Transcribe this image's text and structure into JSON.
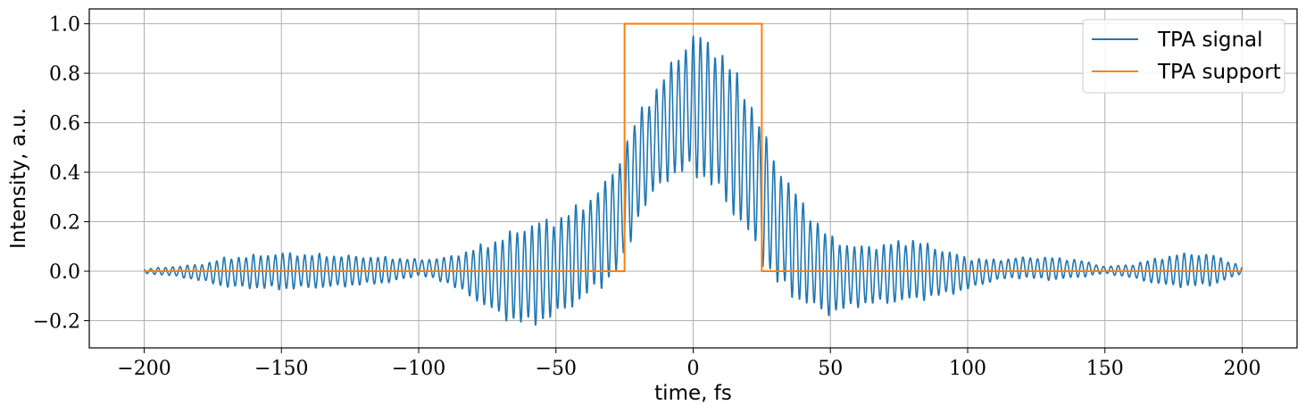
{
  "chart_data": {
    "type": "line",
    "xlabel": "time, fs",
    "ylabel": "Intensity, a.u.",
    "xlim": [
      -220,
      220
    ],
    "ylim": [
      -0.31,
      1.06
    ],
    "grid": true,
    "legend_position": "top-right",
    "xticks": [
      -200,
      -150,
      -100,
      -50,
      0,
      50,
      100,
      150,
      200
    ],
    "xtick_labels": [
      "−200",
      "−150",
      "−100",
      "−50",
      "0",
      "50",
      "100",
      "150",
      "200"
    ],
    "yticks": [
      -0.2,
      0.0,
      0.2,
      0.4,
      0.6,
      0.8,
      1.0
    ],
    "ytick_labels": [
      "−0.2",
      "0.0",
      "0.2",
      "0.4",
      "0.6",
      "0.8",
      "1.0"
    ],
    "series": [
      {
        "name": "TPA signal",
        "color": "#1f77b4",
        "x_range": [
          -200,
          200
        ],
        "fringe_period_fs": 2.67,
        "envelope": {
          "x": [
            -200,
            -190,
            -180,
            -170,
            -150,
            -130,
            -110,
            -100,
            -90,
            -80,
            -70,
            -60,
            -50,
            -40,
            -30,
            -25,
            -20,
            -10,
            0,
            10,
            20,
            25,
            30,
            40,
            50,
            60,
            70,
            80,
            90,
            100,
            110,
            120,
            130,
            140,
            150,
            160,
            170,
            180,
            190,
            200
          ],
          "upper": [
            0.01,
            0.02,
            0.03,
            0.06,
            0.08,
            0.07,
            0.06,
            0.05,
            0.06,
            0.1,
            0.15,
            0.21,
            0.23,
            0.29,
            0.4,
            0.53,
            0.65,
            0.82,
            0.99,
            0.92,
            0.74,
            0.6,
            0.47,
            0.29,
            0.15,
            0.11,
            0.12,
            0.14,
            0.1,
            0.06,
            0.05,
            0.06,
            0.06,
            0.05,
            0.02,
            0.03,
            0.06,
            0.08,
            0.07,
            0.02
          ],
          "lower": [
            -0.01,
            -0.02,
            -0.04,
            -0.07,
            -0.08,
            -0.07,
            -0.05,
            -0.02,
            -0.05,
            -0.12,
            -0.2,
            -0.24,
            -0.2,
            -0.13,
            -0.05,
            0.02,
            0.2,
            0.35,
            0.38,
            0.28,
            0.12,
            0.02,
            -0.07,
            -0.15,
            -0.19,
            -0.15,
            -0.14,
            -0.13,
            -0.11,
            -0.08,
            -0.04,
            -0.03,
            -0.04,
            -0.03,
            -0.01,
            -0.03,
            -0.06,
            -0.07,
            -0.06,
            -0.01
          ]
        }
      },
      {
        "name": "TPA support",
        "color": "#ff7f0e",
        "x": [
          -200,
          -25,
          -25,
          25,
          25,
          200
        ],
        "y": [
          0,
          0,
          1,
          1,
          0,
          0
        ]
      }
    ]
  }
}
